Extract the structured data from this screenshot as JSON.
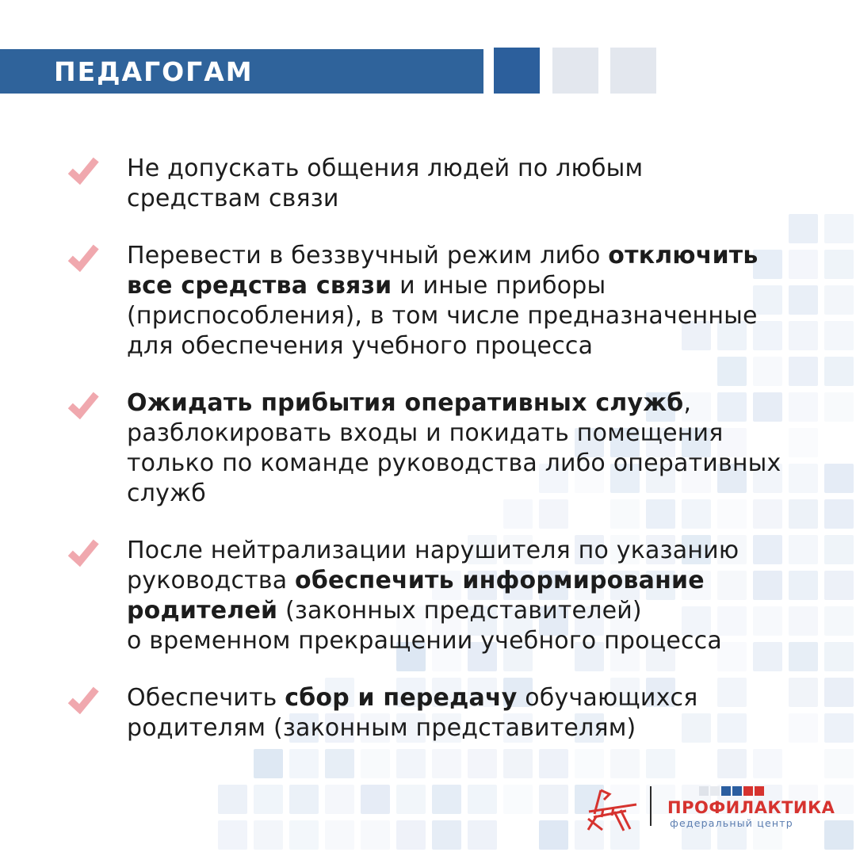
{
  "header": {
    "title": "ПЕДАГОГАМ"
  },
  "checklist": {
    "items": [
      {
        "segments": [
          {
            "text": "Не допускать общения людей по любым\nсредствам связи",
            "bold": false
          }
        ]
      },
      {
        "segments": [
          {
            "text": "Перевести в беззвучный режим либо ",
            "bold": false
          },
          {
            "text": "отключить\nвсе средства связи",
            "bold": true
          },
          {
            "text": " и иные приборы\n(приспособления), в том числе предназначенные\nдля обеспечения учебного процесса",
            "bold": false
          }
        ]
      },
      {
        "segments": [
          {
            "text": "Ожидать прибытия оперативных служб",
            "bold": true
          },
          {
            "text": ",\nразблокировать входы и покидать помещения\nтолько по команде руководства либо оперативных\nслужб",
            "bold": false
          }
        ]
      },
      {
        "segments": [
          {
            "text": "После нейтрализации нарушителя по указанию\nруководства ",
            "bold": false
          },
          {
            "text": "обеспечить информирование\nродителей",
            "bold": true
          },
          {
            "text": " (законных представителей)\nо временном прекращении учебного процесса",
            "bold": false
          }
        ]
      },
      {
        "segments": [
          {
            "text": "Обеспечить ",
            "bold": false
          },
          {
            "text": "сбор и передачу",
            "bold": true
          },
          {
            "text": " обучающихся\nродителям (законным представителям)",
            "bold": false
          }
        ]
      }
    ]
  },
  "footer": {
    "brand_name": "ПРОФИЛАКТИКА",
    "brand_subtitle": "федеральный центр",
    "flag_squares": [
      "#dfe3ea",
      "#e7eaef",
      "#2b5ea0",
      "#2b5ea0",
      "#d6332f",
      "#d6332f"
    ]
  },
  "colors": {
    "header_bar": "#2f639b",
    "deco_square_blue": "#2c5f9c",
    "deco_square_gray": "#e3e7ee",
    "check": "#f0a8ae",
    "text": "#1c1c1c",
    "brand_red": "#d6332f",
    "brand_blue": "#5b7db0",
    "mosaic_palette": [
      "#edf1f8",
      "#e4ebf5",
      "#f2f5fa",
      "#dde7f3"
    ]
  }
}
